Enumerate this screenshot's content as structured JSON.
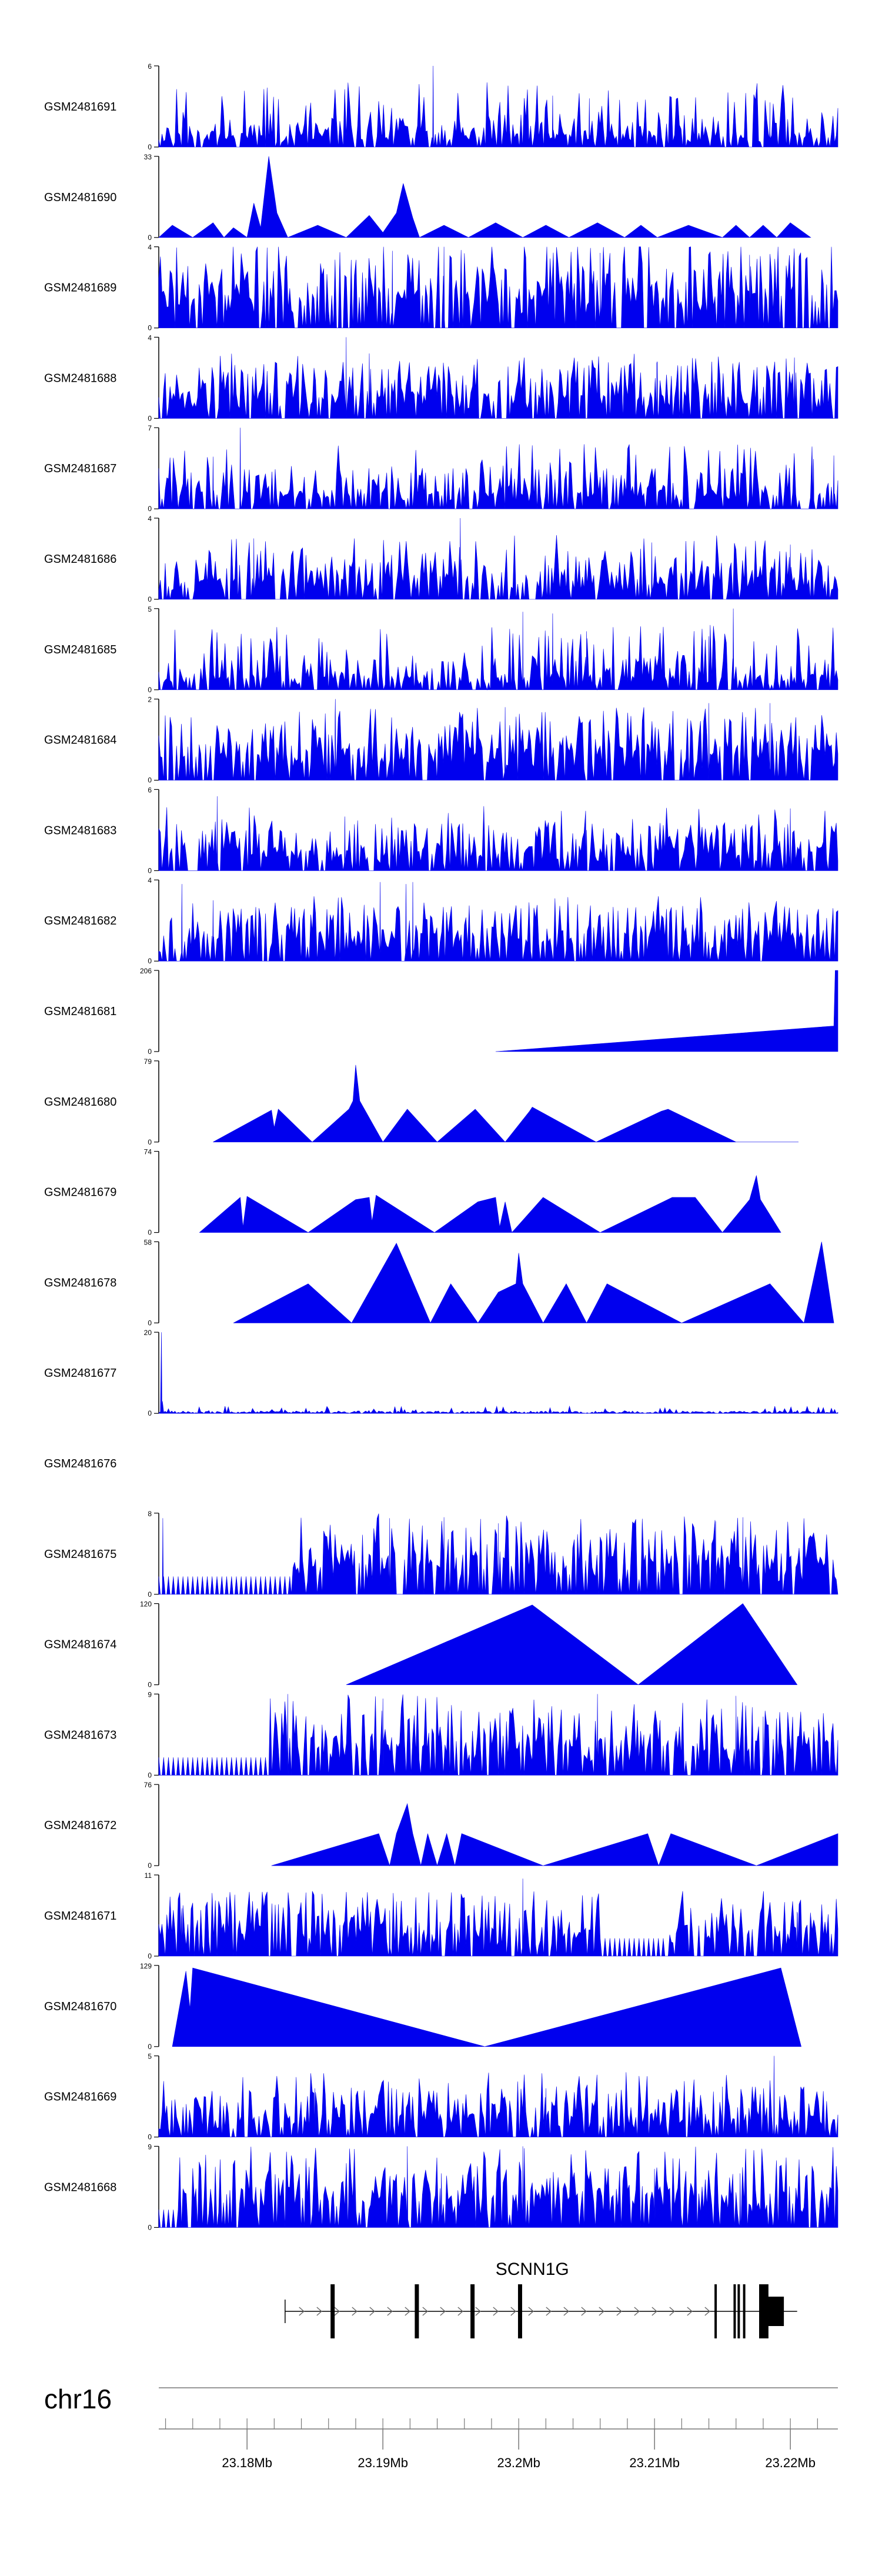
{
  "chart_data": {
    "type": "area",
    "title": "",
    "chromosome": "chr16",
    "gene": {
      "name": "SCNN1G",
      "exons_mb": [
        23.1863,
        23.1925,
        23.1966,
        23.2001,
        23.2145,
        23.2159,
        23.2162,
        23.2166,
        23.2178,
        23.2183,
        23.2187
      ]
    },
    "xlim_mb": [
      23.1735,
      23.2235
    ],
    "x_ticks_mb": [
      23.18,
      23.19,
      23.2,
      23.21,
      23.22
    ],
    "x_tick_labels": [
      "23.18Mb",
      "23.19Mb",
      "23.2Mb",
      "23.21Mb",
      "23.22Mb"
    ],
    "series": [
      {
        "name": "GSM2481691",
        "ymax": 6,
        "ymax_label": "6",
        "ymin_label": "0",
        "style": "spiky",
        "seed": 11,
        "mean": 0.18,
        "peaks": [
          [
            23.1937,
            6
          ],
          [
            23.2025,
            3.8
          ],
          [
            23.2052,
            3.6
          ],
          [
            23.2185,
            3.3
          ]
        ]
      },
      {
        "name": "GSM2481690",
        "ymax": 33,
        "ymax_label": "33",
        "ymin_label": "0",
        "style": "triangles",
        "points": [
          [
            23.1735,
            0
          ],
          [
            23.1745,
            5
          ],
          [
            23.176,
            0
          ],
          [
            23.1775,
            6
          ],
          [
            23.1783,
            0
          ],
          [
            23.179,
            4
          ],
          [
            23.18,
            0
          ],
          [
            23.1805,
            14
          ],
          [
            23.181,
            4
          ],
          [
            23.1816,
            33
          ],
          [
            23.1822,
            10
          ],
          [
            23.183,
            0
          ],
          [
            23.1852,
            5
          ],
          [
            23.1873,
            0
          ],
          [
            23.189,
            9
          ],
          [
            23.19,
            2
          ],
          [
            23.191,
            10
          ],
          [
            23.1915,
            22
          ],
          [
            23.1922,
            8
          ],
          [
            23.1927,
            0
          ],
          [
            23.1945,
            5
          ],
          [
            23.1963,
            0
          ],
          [
            23.1983,
            6
          ],
          [
            23.2003,
            0
          ],
          [
            23.202,
            5
          ],
          [
            23.2037,
            0
          ],
          [
            23.2058,
            6
          ],
          [
            23.2078,
            0
          ],
          [
            23.209,
            5
          ],
          [
            23.2102,
            0
          ],
          [
            23.2125,
            5
          ],
          [
            23.215,
            0
          ],
          [
            23.216,
            5
          ],
          [
            23.217,
            0
          ],
          [
            23.218,
            5
          ],
          [
            23.219,
            0
          ],
          [
            23.22,
            6
          ],
          [
            23.2215,
            0
          ]
        ]
      },
      {
        "name": "GSM2481689",
        "ymax": 4,
        "ymax_label": "4",
        "ymin_label": "0",
        "style": "spiky",
        "seed": 23,
        "mean": 0.55,
        "peaks": [
          [
            23.1945,
            4
          ],
          [
            23.1907,
            3.8
          ],
          [
            23.206,
            3.7
          ],
          [
            23.217,
            3.6
          ]
        ]
      },
      {
        "name": "GSM2481688",
        "ymax": 4,
        "ymax_label": "4",
        "ymin_label": "0",
        "style": "spiky",
        "seed": 37,
        "mean": 0.35,
        "peaks": [
          [
            23.1873,
            4
          ],
          [
            23.189,
            3.2
          ],
          [
            23.2203,
            3.0
          ],
          [
            23.2102,
            2.8
          ]
        ]
      },
      {
        "name": "GSM2481687",
        "ymax": 7,
        "ymax_label": "7",
        "ymin_label": "0",
        "style": "spiky",
        "seed": 41,
        "mean": 0.25,
        "peaks": [
          [
            23.1795,
            7
          ],
          [
            23.1775,
            4.5
          ],
          [
            23.2217,
            4.3
          ],
          [
            23.2232,
            4.6
          ]
        ]
      },
      {
        "name": "GSM2481686",
        "ymax": 4,
        "ymax_label": "4",
        "ymin_label": "0",
        "style": "spiky",
        "seed": 53,
        "mean": 0.3,
        "peaks": [
          [
            23.1957,
            4
          ],
          [
            23.1805,
            3.0
          ],
          [
            23.2098,
            2.8
          ],
          [
            23.22,
            2.7
          ]
        ]
      },
      {
        "name": "GSM2481685",
        "ymax": 5,
        "ymax_label": "5",
        "ymin_label": "0",
        "style": "spiky",
        "seed": 67,
        "mean": 0.2,
        "peaks": [
          [
            23.2003,
            4.8
          ],
          [
            23.2025,
            4.7
          ],
          [
            23.2158,
            5
          ],
          [
            23.205,
            3.6
          ],
          [
            23.214,
            3.3
          ]
        ]
      },
      {
        "name": "GSM2481684",
        "ymax": 2,
        "ymax_label": "2",
        "ymin_label": "0",
        "style": "spiky",
        "seed": 79,
        "mean": 0.45,
        "peaks": [
          [
            23.1865,
            2
          ],
          [
            23.214,
            1.9
          ],
          [
            23.2185,
            1.9
          ],
          [
            23.199,
            1.8
          ]
        ]
      },
      {
        "name": "GSM2481683",
        "ymax": 6,
        "ymax_label": "6",
        "ymin_label": "0",
        "style": "spiky",
        "seed": 83,
        "mean": 0.3,
        "peaks": [
          [
            23.1778,
            5.5
          ],
          [
            23.1872,
            4.0
          ],
          [
            23.22,
            4.6
          ],
          [
            23.205,
            3.0
          ]
        ]
      },
      {
        "name": "GSM2481682",
        "ymax": 4,
        "ymax_label": "4",
        "ymin_label": "0",
        "style": "spiky",
        "seed": 97,
        "mean": 0.35,
        "peaks": [
          [
            23.1752,
            3.8
          ],
          [
            23.1898,
            3.9
          ],
          [
            23.1917,
            3.8
          ],
          [
            23.1922,
            3.9
          ],
          [
            23.1775,
            3.0
          ]
        ]
      },
      {
        "name": "GSM2481681",
        "ymax": 206,
        "ymax_label": "206",
        "ymin_label": "0",
        "style": "triangles",
        "points": [
          [
            23.1983,
            0
          ],
          [
            23.2232,
            65
          ],
          [
            23.2233,
            206
          ],
          [
            23.2235,
            206
          ],
          [
            23.2235,
            0
          ]
        ]
      },
      {
        "name": "GSM2481680",
        "ymax": 79,
        "ymax_label": "79",
        "ymin_label": "0",
        "style": "triangles",
        "points": [
          [
            23.1775,
            0
          ],
          [
            23.1818,
            31
          ],
          [
            23.182,
            14
          ],
          [
            23.1823,
            32
          ],
          [
            23.1848,
            0
          ],
          [
            23.1875,
            32
          ],
          [
            23.1878,
            40
          ],
          [
            23.188,
            75
          ],
          [
            23.1883,
            40
          ],
          [
            23.19,
            0
          ],
          [
            23.1918,
            32
          ],
          [
            23.194,
            0
          ],
          [
            23.1968,
            32
          ],
          [
            23.199,
            0
          ],
          [
            23.2008,
            30
          ],
          [
            23.201,
            34
          ],
          [
            23.2057,
            0
          ],
          [
            23.2105,
            30
          ],
          [
            23.211,
            32
          ],
          [
            23.216,
            0
          ],
          [
            23.2206,
            0
          ]
        ]
      },
      {
        "name": "GSM2481679",
        "ymax": 74,
        "ymax_label": "74",
        "ymin_label": "0",
        "style": "triangles",
        "points": [
          [
            23.1765,
            0
          ],
          [
            23.1795,
            32
          ],
          [
            23.1797,
            5
          ],
          [
            23.18,
            33
          ],
          [
            23.1845,
            0
          ],
          [
            23.188,
            30
          ],
          [
            23.189,
            32
          ],
          [
            23.1892,
            10
          ],
          [
            23.1895,
            34
          ],
          [
            23.1938,
            0
          ],
          [
            23.197,
            28
          ],
          [
            23.1983,
            32
          ],
          [
            23.1986,
            5
          ],
          [
            23.199,
            28
          ],
          [
            23.1995,
            0
          ],
          [
            23.2018,
            32
          ],
          [
            23.206,
            0
          ],
          [
            23.2113,
            32
          ],
          [
            23.213,
            32
          ],
          [
            23.215,
            0
          ],
          [
            23.217,
            30
          ],
          [
            23.2175,
            52
          ],
          [
            23.2178,
            30
          ],
          [
            23.2193,
            0
          ]
        ]
      },
      {
        "name": "GSM2481678",
        "ymax": 58,
        "ymax_label": "58",
        "ymin_label": "0",
        "style": "triangles",
        "points": [
          [
            23.179,
            0
          ],
          [
            23.1845,
            28
          ],
          [
            23.1877,
            0
          ],
          [
            23.191,
            57
          ],
          [
            23.1935,
            0
          ],
          [
            23.195,
            28
          ],
          [
            23.197,
            0
          ],
          [
            23.1985,
            22
          ],
          [
            23.1998,
            28
          ],
          [
            23.2,
            50
          ],
          [
            23.2003,
            28
          ],
          [
            23.2018,
            0
          ],
          [
            23.2035,
            28
          ],
          [
            23.205,
            0
          ],
          [
            23.2065,
            28
          ],
          [
            23.212,
            0
          ],
          [
            23.2185,
            28
          ],
          [
            23.221,
            0
          ],
          [
            23.2223,
            58
          ],
          [
            23.2232,
            0
          ]
        ]
      },
      {
        "name": "GSM2481677",
        "ymax": 20,
        "ymax_label": "20",
        "ymin_label": "0",
        "style": "noise",
        "seed": 109,
        "mean": 0.6,
        "spike_mb": 23.1737,
        "spike_value": 20
      },
      {
        "name": "GSM2481676",
        "ymax": 0,
        "ymax_label": "",
        "ymin_label": "",
        "style": "empty"
      },
      {
        "name": "GSM2481675",
        "ymax": 8,
        "ymax_label": "8",
        "ymin_label": "0",
        "style": "mixed",
        "seed": 127,
        "mean": 0.5,
        "peaks": [
          [
            23.1738,
            7.5
          ],
          [
            23.1905,
            7.5
          ],
          [
            23.1945,
            7.6
          ],
          [
            23.2145,
            7.2
          ],
          [
            23.2165,
            7.6
          ],
          [
            23.1985,
            7.0
          ]
        ],
        "flat_mb": [
          23.1735,
          23.1833
        ]
      },
      {
        "name": "GSM2481674",
        "ymax": 120,
        "ymax_label": "120",
        "ymin_label": "0",
        "style": "triangles",
        "points": [
          [
            23.1873,
            0
          ],
          [
            23.201,
            118
          ],
          [
            23.2088,
            0
          ],
          [
            23.2165,
            120
          ],
          [
            23.2205,
            0
          ]
        ]
      },
      {
        "name": "GSM2481673",
        "ymax": 9,
        "ymax_label": "9",
        "ymin_label": "0",
        "style": "mixed",
        "seed": 139,
        "mean": 0.5,
        "peaks": [
          [
            23.183,
            9
          ],
          [
            23.19,
            8.5
          ],
          [
            23.2058,
            9
          ],
          [
            23.216,
            8.8
          ],
          [
            23.218,
            6.5
          ]
        ],
        "flat_mb": [
          23.1735,
          23.1815
        ]
      },
      {
        "name": "GSM2481672",
        "ymax": 76,
        "ymax_label": "76",
        "ymin_label": "0",
        "style": "triangles",
        "points": [
          [
            23.1818,
            0
          ],
          [
            23.1897,
            30
          ],
          [
            23.1905,
            0
          ],
          [
            23.191,
            30
          ],
          [
            23.1918,
            58
          ],
          [
            23.1922,
            30
          ],
          [
            23.1928,
            0
          ],
          [
            23.1933,
            30
          ],
          [
            23.194,
            0
          ],
          [
            23.1947,
            30
          ],
          [
            23.1953,
            0
          ],
          [
            23.1958,
            30
          ],
          [
            23.2018,
            0
          ],
          [
            23.2095,
            30
          ],
          [
            23.2103,
            0
          ],
          [
            23.2112,
            30
          ],
          [
            23.2175,
            0
          ],
          [
            23.2235,
            30
          ],
          [
            23.2235,
            0
          ]
        ]
      },
      {
        "name": "GSM2481671",
        "ymax": 11,
        "ymax_label": "11",
        "ymin_label": "0",
        "style": "mixed",
        "seed": 151,
        "mean": 0.4,
        "peaks": [
          [
            23.2003,
            10.5
          ],
          [
            23.1752,
            6.5
          ],
          [
            23.1905,
            6.2
          ],
          [
            23.2205,
            6.0
          ]
        ],
        "flat_mb": [
          23.206,
          23.211
        ]
      },
      {
        "name": "GSM2481670",
        "ymax": 129,
        "ymax_label": "129",
        "ymin_label": "0",
        "style": "triangles",
        "points": [
          [
            23.1745,
            0
          ],
          [
            23.1755,
            120
          ],
          [
            23.1758,
            60
          ],
          [
            23.176,
            125
          ],
          [
            23.1975,
            0
          ],
          [
            23.2193,
            125
          ],
          [
            23.2208,
            0
          ]
        ]
      },
      {
        "name": "GSM2481669",
        "ymax": 5,
        "ymax_label": "5",
        "ymin_label": "0",
        "style": "spiky",
        "seed": 163,
        "mean": 0.3,
        "peaks": [
          [
            23.2188,
            5
          ],
          [
            23.185,
            3.0
          ],
          [
            23.202,
            3.0
          ],
          [
            23.215,
            3.1
          ]
        ]
      },
      {
        "name": "GSM2481668",
        "ymax": 9,
        "ymax_label": "9",
        "ymin_label": "0",
        "style": "mixed",
        "seed": 179,
        "mean": 0.5,
        "peaks": [
          [
            23.1918,
            9
          ],
          [
            23.2003,
            9
          ],
          [
            23.1943,
            6.0
          ],
          [
            23.21,
            6.5
          ],
          [
            23.2163,
            6.0
          ]
        ],
        "flat_mb": [
          23.1735,
          23.175
        ]
      }
    ]
  }
}
